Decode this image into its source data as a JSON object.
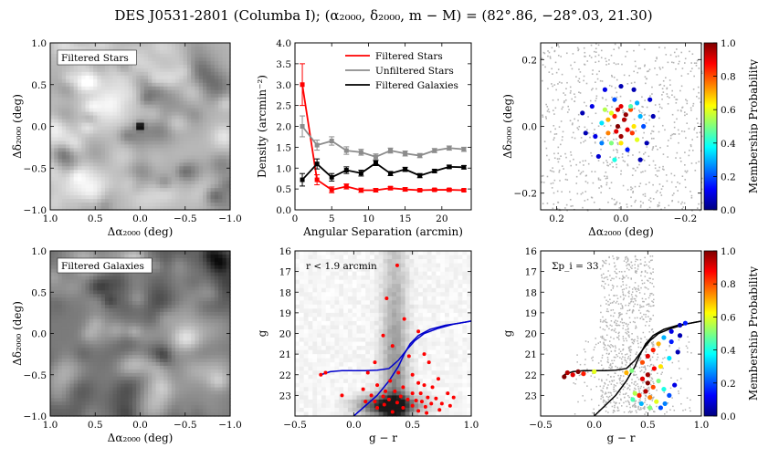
{
  "figure": {
    "title": "DES J0531-2801 (Columba I); (α₂₀₀₀, δ₂₀₀₀, m − M) = (82°.86, −28°.03, 21.30)"
  },
  "chart_data": [
    {
      "panel": "filtered-stars-map",
      "type": "heatmap",
      "annotation": "Filtered Stars",
      "xlabel": "Δα₂₀₀₀ (deg)",
      "ylabel": "Δδ₂₀₀₀ (deg)",
      "xlim": [
        1.0,
        -1.0
      ],
      "ylim": [
        -1.0,
        1.0
      ],
      "xticks": [
        "1.0",
        "0.5",
        "0.0",
        "−0.5",
        "−1.0"
      ],
      "yticks": [
        "−1.0",
        "−0.5",
        "0.0",
        "0.5",
        "1.0"
      ],
      "colormap": "greys",
      "peak": {
        "x": 0.0,
        "y": 0.0
      }
    },
    {
      "panel": "radial-profile",
      "type": "line",
      "xlabel": "Angular Separation (arcmin)",
      "ylabel": "Density (arcmin⁻²)",
      "xlim": [
        0,
        24
      ],
      "ylim": [
        0.0,
        4.0
      ],
      "xticks": [
        "0",
        "5",
        "10",
        "15",
        "20"
      ],
      "yticks": [
        "0.0",
        "0.5",
        "1.0",
        "1.5",
        "2.0",
        "2.5",
        "3.0",
        "3.5",
        "4.0"
      ],
      "legend": "top-right",
      "x": [
        1,
        3,
        5,
        7,
        9,
        11,
        13,
        15,
        17,
        19,
        21,
        23
      ],
      "series": [
        {
          "name": "Filtered Stars",
          "color": "#ff0000",
          "values": [
            3.0,
            0.72,
            0.48,
            0.56,
            0.47,
            0.47,
            0.52,
            0.49,
            0.47,
            0.48,
            0.48,
            0.47
          ],
          "errors": [
            0.5,
            0.12,
            0.07,
            0.06,
            0.05,
            0.04,
            0.04,
            0.04,
            0.03,
            0.03,
            0.03,
            0.03
          ]
        },
        {
          "name": "Unfiltered Stars",
          "color": "#8c8c8c",
          "values": [
            2.0,
            1.55,
            1.65,
            1.42,
            1.38,
            1.27,
            1.42,
            1.35,
            1.3,
            1.42,
            1.48,
            1.45
          ],
          "errors": [
            0.25,
            0.12,
            0.1,
            0.09,
            0.07,
            0.07,
            0.06,
            0.06,
            0.05,
            0.05,
            0.05,
            0.05
          ]
        },
        {
          "name": "Filtered Galaxies",
          "color": "#000000",
          "values": [
            0.72,
            1.1,
            0.78,
            0.95,
            0.88,
            1.12,
            0.87,
            0.97,
            0.82,
            0.93,
            1.03,
            1.02
          ],
          "errors": [
            0.15,
            0.12,
            0.09,
            0.08,
            0.07,
            0.06,
            0.05,
            0.05,
            0.05,
            0.04,
            0.04,
            0.04
          ]
        }
      ]
    },
    {
      "panel": "membership-map",
      "type": "scatter",
      "xlabel": "Δα₂₀₀₀ (deg)",
      "ylabel": "Δδ₂₀₀₀ (deg)",
      "xlim": [
        0.25,
        -0.25
      ],
      "ylim": [
        -0.25,
        0.25
      ],
      "xticks": [
        "0.2",
        "0.0",
        "−0.2"
      ],
      "yticks": [
        "−0.2",
        "0.0",
        "0.2"
      ],
      "background_color": "#b4b4b4",
      "members": [
        [
          -0.01,
          0.02,
          0.95
        ],
        [
          0.01,
          0.0,
          1.0
        ],
        [
          -0.02,
          -0.01,
          0.9
        ],
        [
          0.02,
          0.03,
          0.85
        ],
        [
          0.0,
          -0.03,
          0.97
        ],
        [
          -0.03,
          0.05,
          0.8
        ],
        [
          0.04,
          -0.02,
          0.75
        ],
        [
          -0.05,
          -0.04,
          0.6
        ],
        [
          0.05,
          0.05,
          0.55
        ],
        [
          0.0,
          0.06,
          0.9
        ],
        [
          -0.04,
          0.0,
          0.65
        ],
        [
          0.03,
          -0.05,
          0.5
        ],
        [
          0.06,
          0.01,
          0.35
        ],
        [
          -0.06,
          0.03,
          0.3
        ],
        [
          0.02,
          0.08,
          0.2
        ],
        [
          -0.02,
          -0.07,
          0.15
        ],
        [
          0.08,
          -0.03,
          0.1
        ],
        [
          -0.08,
          -0.05,
          0.05
        ],
        [
          0.09,
          0.06,
          0.1
        ],
        [
          -0.1,
          0.03,
          0.05
        ],
        [
          0.0,
          0.12,
          0.05
        ],
        [
          0.05,
          0.11,
          0.1
        ],
        [
          -0.04,
          0.11,
          0.05
        ],
        [
          0.11,
          -0.02,
          0.05
        ],
        [
          -0.09,
          0.08,
          0.08
        ],
        [
          0.07,
          -0.09,
          0.08
        ],
        [
          -0.06,
          -0.1,
          0.05
        ],
        [
          0.02,
          -0.1,
          0.4
        ],
        [
          0.12,
          0.04,
          0.05
        ],
        [
          -0.03,
          0.06,
          0.45
        ],
        [
          0.04,
          0.02,
          0.7
        ],
        [
          -0.015,
          0.035,
          0.98
        ],
        [
          0.015,
          -0.015,
          0.9
        ],
        [
          -0.035,
          -0.02,
          0.82
        ],
        [
          0.03,
          0.04,
          0.6
        ],
        [
          0.06,
          -0.05,
          0.25
        ],
        [
          -0.07,
          0.0,
          0.2
        ],
        [
          0.0,
          -0.05,
          0.65
        ],
        [
          0.01,
          0.05,
          0.92
        ],
        [
          -0.05,
          0.07,
          0.3
        ]
      ]
    },
    {
      "panel": "filtered-galaxies-map",
      "type": "heatmap",
      "annotation": "Filtered Galaxies",
      "xlabel": "Δα₂₀₀₀ (deg)",
      "ylabel": "Δδ₂₀₀₀ (deg)",
      "xlim": [
        1.0,
        -1.0
      ],
      "ylim": [
        -1.0,
        1.0
      ],
      "xticks": [
        "1.0",
        "0.5",
        "0.0",
        "−0.5",
        "−1.0"
      ],
      "yticks": [
        "−1.0",
        "−0.5",
        "0.0",
        "0.5",
        "1.0"
      ],
      "colormap": "greys"
    },
    {
      "panel": "cmd-radius",
      "type": "scatter",
      "annotation": "r < 1.9 arcmin",
      "xlabel": "g − r",
      "ylabel": "g",
      "xlim": [
        -0.5,
        1.0
      ],
      "ylim": [
        24.0,
        16.0
      ],
      "xticks": [
        "−0.5",
        "0.0",
        "0.5",
        "1.0"
      ],
      "yticks": [
        "16",
        "17",
        "18",
        "19",
        "20",
        "21",
        "22",
        "23"
      ],
      "points": [
        [
          0.37,
          16.7
        ],
        [
          0.28,
          18.3
        ],
        [
          0.43,
          19.3
        ],
        [
          0.55,
          19.9
        ],
        [
          0.25,
          20.1
        ],
        [
          0.33,
          20.6
        ],
        [
          0.6,
          21.0
        ],
        [
          0.47,
          21.1
        ],
        [
          0.18,
          21.4
        ],
        [
          0.64,
          21.4
        ],
        [
          -0.28,
          22.0
        ],
        [
          -0.24,
          21.9
        ],
        [
          0.12,
          21.9
        ],
        [
          0.38,
          21.9
        ],
        [
          0.5,
          22.0
        ],
        [
          0.72,
          22.2
        ],
        [
          0.31,
          22.3
        ],
        [
          0.55,
          22.4
        ],
        [
          0.6,
          22.5
        ],
        [
          0.2,
          22.5
        ],
        [
          0.42,
          22.6
        ],
        [
          0.67,
          22.6
        ],
        [
          0.08,
          22.7
        ],
        [
          0.27,
          22.8
        ],
        [
          0.35,
          22.8
        ],
        [
          0.5,
          22.9
        ],
        [
          0.57,
          22.9
        ],
        [
          0.8,
          22.9
        ],
        [
          -0.1,
          23.0
        ],
        [
          0.15,
          23.0
        ],
        [
          0.25,
          23.05
        ],
        [
          0.4,
          23.05
        ],
        [
          0.63,
          23.1
        ],
        [
          0.7,
          23.15
        ],
        [
          0.85,
          23.1
        ],
        [
          0.3,
          23.2
        ],
        [
          0.46,
          23.2
        ],
        [
          0.53,
          23.25
        ],
        [
          0.58,
          23.3
        ],
        [
          0.18,
          23.3
        ],
        [
          0.1,
          23.3
        ],
        [
          0.37,
          23.35
        ],
        [
          0.66,
          23.4
        ],
        [
          0.75,
          23.4
        ],
        [
          0.26,
          23.45
        ],
        [
          0.5,
          23.5
        ],
        [
          0.82,
          23.5
        ],
        [
          0.61,
          23.55
        ],
        [
          0.2,
          23.6
        ],
        [
          0.42,
          23.6
        ],
        [
          0.73,
          23.7
        ],
        [
          0.55,
          23.75
        ],
        [
          0.33,
          23.8
        ],
        [
          0.62,
          23.85
        ]
      ],
      "isochrone": [
        [
          0.0,
          24.0
        ],
        [
          0.2,
          23.0
        ],
        [
          0.3,
          22.3
        ],
        [
          0.38,
          21.6
        ],
        [
          0.43,
          21.0
        ],
        [
          0.48,
          20.5
        ],
        [
          0.55,
          20.1
        ],
        [
          0.65,
          19.8
        ],
        [
          0.78,
          19.6
        ],
        [
          0.9,
          19.5
        ],
        [
          1.0,
          19.4
        ]
      ],
      "hb_branch": [
        [
          -0.28,
          22.0
        ],
        [
          -0.2,
          21.85
        ],
        [
          -0.1,
          21.8
        ],
        [
          0.0,
          21.8
        ],
        [
          0.1,
          21.8
        ],
        [
          0.2,
          21.78
        ],
        [
          0.3,
          21.7
        ],
        [
          0.38,
          21.3
        ],
        [
          0.45,
          20.8
        ],
        [
          0.52,
          20.35
        ],
        [
          0.6,
          20.0
        ],
        [
          0.72,
          19.75
        ],
        [
          0.85,
          19.55
        ],
        [
          1.0,
          19.4
        ]
      ]
    },
    {
      "panel": "cmd-members",
      "type": "scatter",
      "annotation": "Σp_i = 33",
      "xlabel": "g − r",
      "ylabel": "g",
      "xlim": [
        -0.5,
        1.0
      ],
      "ylim": [
        24.0,
        16.0
      ],
      "xticks": [
        "−0.5",
        "0.0",
        "0.5",
        "1.0"
      ],
      "yticks": [
        "16",
        "17",
        "18",
        "19",
        "20",
        "21",
        "22",
        "23"
      ],
      "members": [
        [
          -0.28,
          22.1,
          1.0
        ],
        [
          -0.25,
          21.9,
          0.95
        ],
        [
          -0.2,
          22.0,
          0.9
        ],
        [
          -0.15,
          21.85,
          1.0
        ],
        [
          -0.1,
          21.95,
          0.85
        ],
        [
          0.0,
          21.85,
          0.6
        ],
        [
          0.3,
          21.9,
          0.7
        ],
        [
          0.35,
          21.8,
          0.5
        ],
        [
          0.45,
          21.4,
          0.8
        ],
        [
          0.5,
          21.1,
          0.9
        ],
        [
          0.55,
          20.8,
          0.85
        ],
        [
          0.6,
          20.5,
          0.7
        ],
        [
          0.65,
          20.2,
          0.3
        ],
        [
          0.72,
          19.9,
          0.1
        ],
        [
          0.8,
          19.6,
          0.05
        ],
        [
          0.85,
          19.5,
          0.15
        ],
        [
          0.45,
          22.2,
          0.9
        ],
        [
          0.5,
          22.4,
          1.0
        ],
        [
          0.55,
          22.6,
          0.8
        ],
        [
          0.48,
          22.8,
          0.95
        ],
        [
          0.6,
          22.3,
          0.5
        ],
        [
          0.65,
          22.7,
          0.4
        ],
        [
          0.42,
          23.0,
          0.85
        ],
        [
          0.52,
          23.1,
          0.75
        ],
        [
          0.58,
          23.3,
          0.6
        ],
        [
          0.38,
          22.9,
          0.55
        ],
        [
          0.7,
          23.0,
          0.2
        ],
        [
          0.75,
          22.5,
          0.1
        ],
        [
          0.62,
          21.6,
          0.65
        ],
        [
          0.7,
          21.2,
          0.35
        ],
        [
          0.78,
          20.9,
          0.05
        ],
        [
          0.36,
          23.2,
          0.45
        ],
        [
          0.66,
          23.4,
          0.25
        ],
        [
          0.5,
          22.0,
          0.97
        ],
        [
          0.56,
          21.7,
          0.88
        ],
        [
          0.44,
          23.4,
          0.3
        ],
        [
          0.72,
          20.4,
          0.15
        ],
        [
          0.8,
          20.1,
          0.05
        ],
        [
          0.52,
          23.6,
          0.5
        ],
        [
          0.62,
          23.6,
          0.2
        ]
      ],
      "background_color": "#b4b4b4",
      "isochrone": [
        [
          0.0,
          24.0
        ],
        [
          0.2,
          23.0
        ],
        [
          0.3,
          22.3
        ],
        [
          0.38,
          21.6
        ],
        [
          0.43,
          21.0
        ],
        [
          0.48,
          20.5
        ],
        [
          0.55,
          20.1
        ],
        [
          0.65,
          19.8
        ],
        [
          0.78,
          19.6
        ],
        [
          0.9,
          19.5
        ],
        [
          1.0,
          19.4
        ]
      ],
      "hb_branch": [
        [
          -0.28,
          22.0
        ],
        [
          -0.2,
          21.85
        ],
        [
          -0.1,
          21.8
        ],
        [
          0.0,
          21.8
        ],
        [
          0.1,
          21.8
        ],
        [
          0.2,
          21.78
        ],
        [
          0.3,
          21.7
        ],
        [
          0.38,
          21.3
        ],
        [
          0.45,
          20.8
        ],
        [
          0.52,
          20.35
        ],
        [
          0.6,
          20.0
        ],
        [
          0.72,
          19.75
        ],
        [
          0.85,
          19.55
        ],
        [
          1.0,
          19.4
        ]
      ]
    }
  ],
  "colorbar": {
    "label": "Membership Probability",
    "range": [
      0.0,
      1.0
    ],
    "ticks": [
      "0.0",
      "0.2",
      "0.4",
      "0.6",
      "0.8",
      "1.0"
    ],
    "colormap": "jet"
  }
}
